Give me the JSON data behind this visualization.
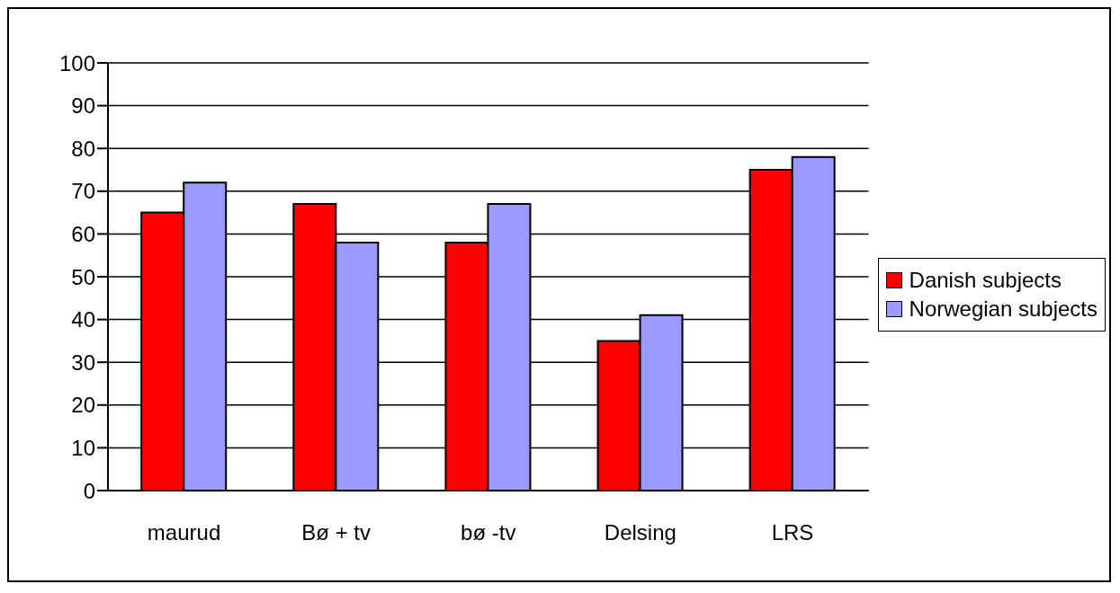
{
  "chart_data": {
    "type": "bar",
    "categories": [
      "maurud",
      "Bø + tv",
      "bø -tv",
      "Delsing",
      "LRS"
    ],
    "series": [
      {
        "name": "Danish subjects",
        "color": "#ff0000",
        "values": [
          65,
          67,
          58,
          35,
          75
        ]
      },
      {
        "name": "Norwegian subjects",
        "color": "#9999ff",
        "values": [
          72,
          58,
          67,
          41,
          78
        ]
      }
    ],
    "ylim": [
      0,
      100
    ],
    "yticks": [
      0,
      10,
      20,
      30,
      40,
      50,
      60,
      70,
      80,
      90,
      100
    ],
    "grid": "y",
    "legend": "right"
  }
}
